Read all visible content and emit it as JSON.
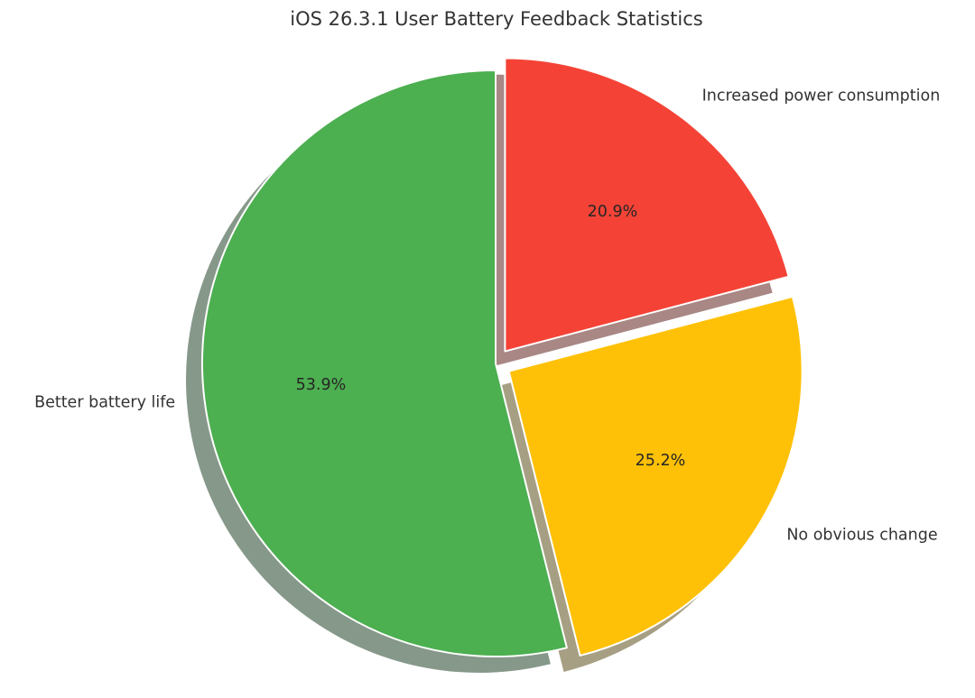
{
  "chart_data": {
    "type": "pie",
    "title": "iOS 26.3.1 User Battery Feedback Statistics",
    "start_angle_deg": 90,
    "direction": "counterclockwise",
    "shadow": true,
    "slices": [
      {
        "label": "Better battery life",
        "value": 53.9,
        "pct_label": "53.9%",
        "color": "#4caf50",
        "shadow_color": "#86988a",
        "exploded": false
      },
      {
        "label": "No obvious change",
        "value": 25.2,
        "pct_label": "25.2%",
        "color": "#ffc107",
        "shadow_color": "#a79f83",
        "exploded": true
      },
      {
        "label": "Increased power consumption",
        "value": 20.9,
        "pct_label": "20.9%",
        "color": "#f44336",
        "shadow_color": "#a88785",
        "exploded": true
      }
    ]
  }
}
